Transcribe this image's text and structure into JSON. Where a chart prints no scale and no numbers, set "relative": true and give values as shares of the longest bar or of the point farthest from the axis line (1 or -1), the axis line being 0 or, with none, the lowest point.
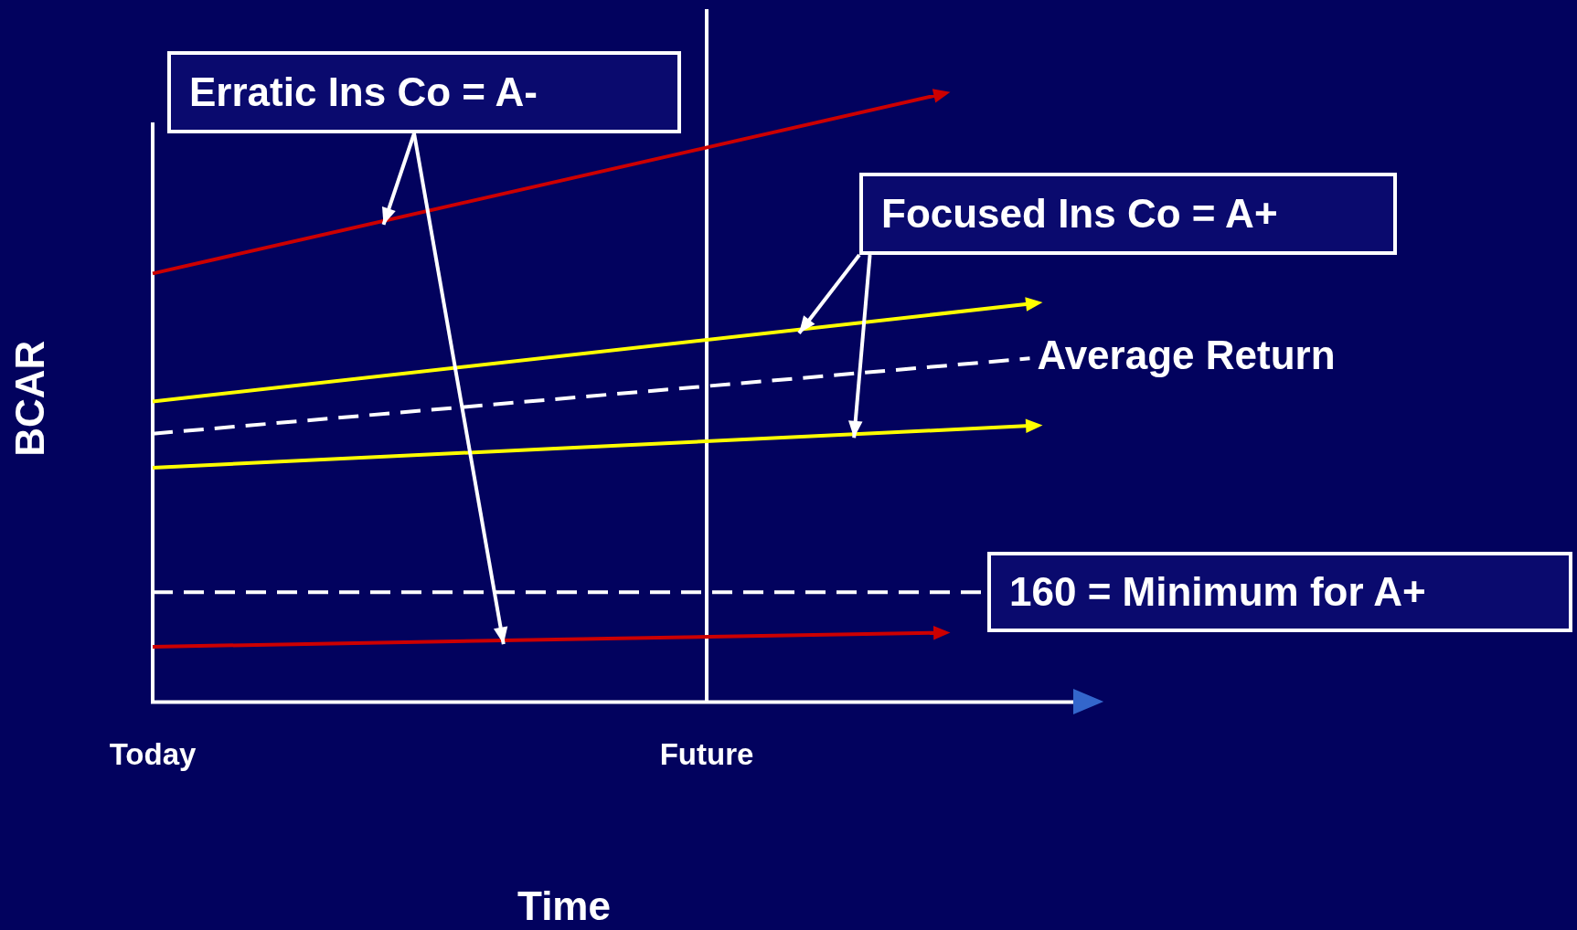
{
  "chart_data": {
    "type": "line",
    "relative": true,
    "xlabel": "Time",
    "ylabel": "BCAR",
    "categories": [
      "Today",
      null,
      null,
      null,
      null,
      null,
      null,
      null,
      null,
      null,
      null,
      null,
      "Future",
      null,
      null,
      null,
      null,
      null,
      null,
      null,
      null
    ],
    "series": [
      {
        "color": "#cc0000",
        "values": [
          0.706,
          null,
          null,
          null,
          null,
          null,
          null,
          null,
          null,
          null,
          null,
          null,
          null,
          null,
          null,
          null,
          null,
          1,
          null,
          null,
          null
        ]
      },
      {
        "color": "#ffff00",
        "values": [
          0.495,
          null,
          null,
          null,
          null,
          null,
          null,
          null,
          null,
          null,
          null,
          null,
          null,
          null,
          null,
          null,
          null,
          null,
          null,
          0.656,
          null
        ]
      },
      {
        "name": "Average Return",
        "color": "#ffffff",
        "line_style": "dashed",
        "values": [
          0.442,
          null,
          null,
          null,
          null,
          null,
          null,
          null,
          null,
          null,
          null,
          null,
          null,
          null,
          null,
          null,
          null,
          null,
          null,
          0.566,
          null
        ]
      },
      {
        "color": "#ffff00",
        "values": [
          0.386,
          null,
          null,
          null,
          null,
          null,
          null,
          null,
          null,
          null,
          null,
          null,
          null,
          null,
          null,
          null,
          null,
          null,
          null,
          0.455,
          null
        ]
      },
      {
        "color": "#cc0000",
        "values": [
          0.091,
          null,
          null,
          null,
          null,
          null,
          null,
          null,
          null,
          null,
          null,
          null,
          null,
          null,
          null,
          null,
          null,
          0.114,
          null,
          null,
          null
        ]
      }
    ],
    "ref_lines": [
      {
        "axis": "x",
        "value": "Future",
        "label": null,
        "color": "#ffffff",
        "line_style": "solid"
      },
      {
        "axis": "y",
        "value": 0.181,
        "label": "160 = Minimum for A+",
        "color": "#ffffff",
        "line_style": "dashed"
      }
    ],
    "annotations": [
      "Erratic Ins Co = A-",
      "Focused Ins Co = A+"
    ],
    "grid": false,
    "legend": false
  }
}
